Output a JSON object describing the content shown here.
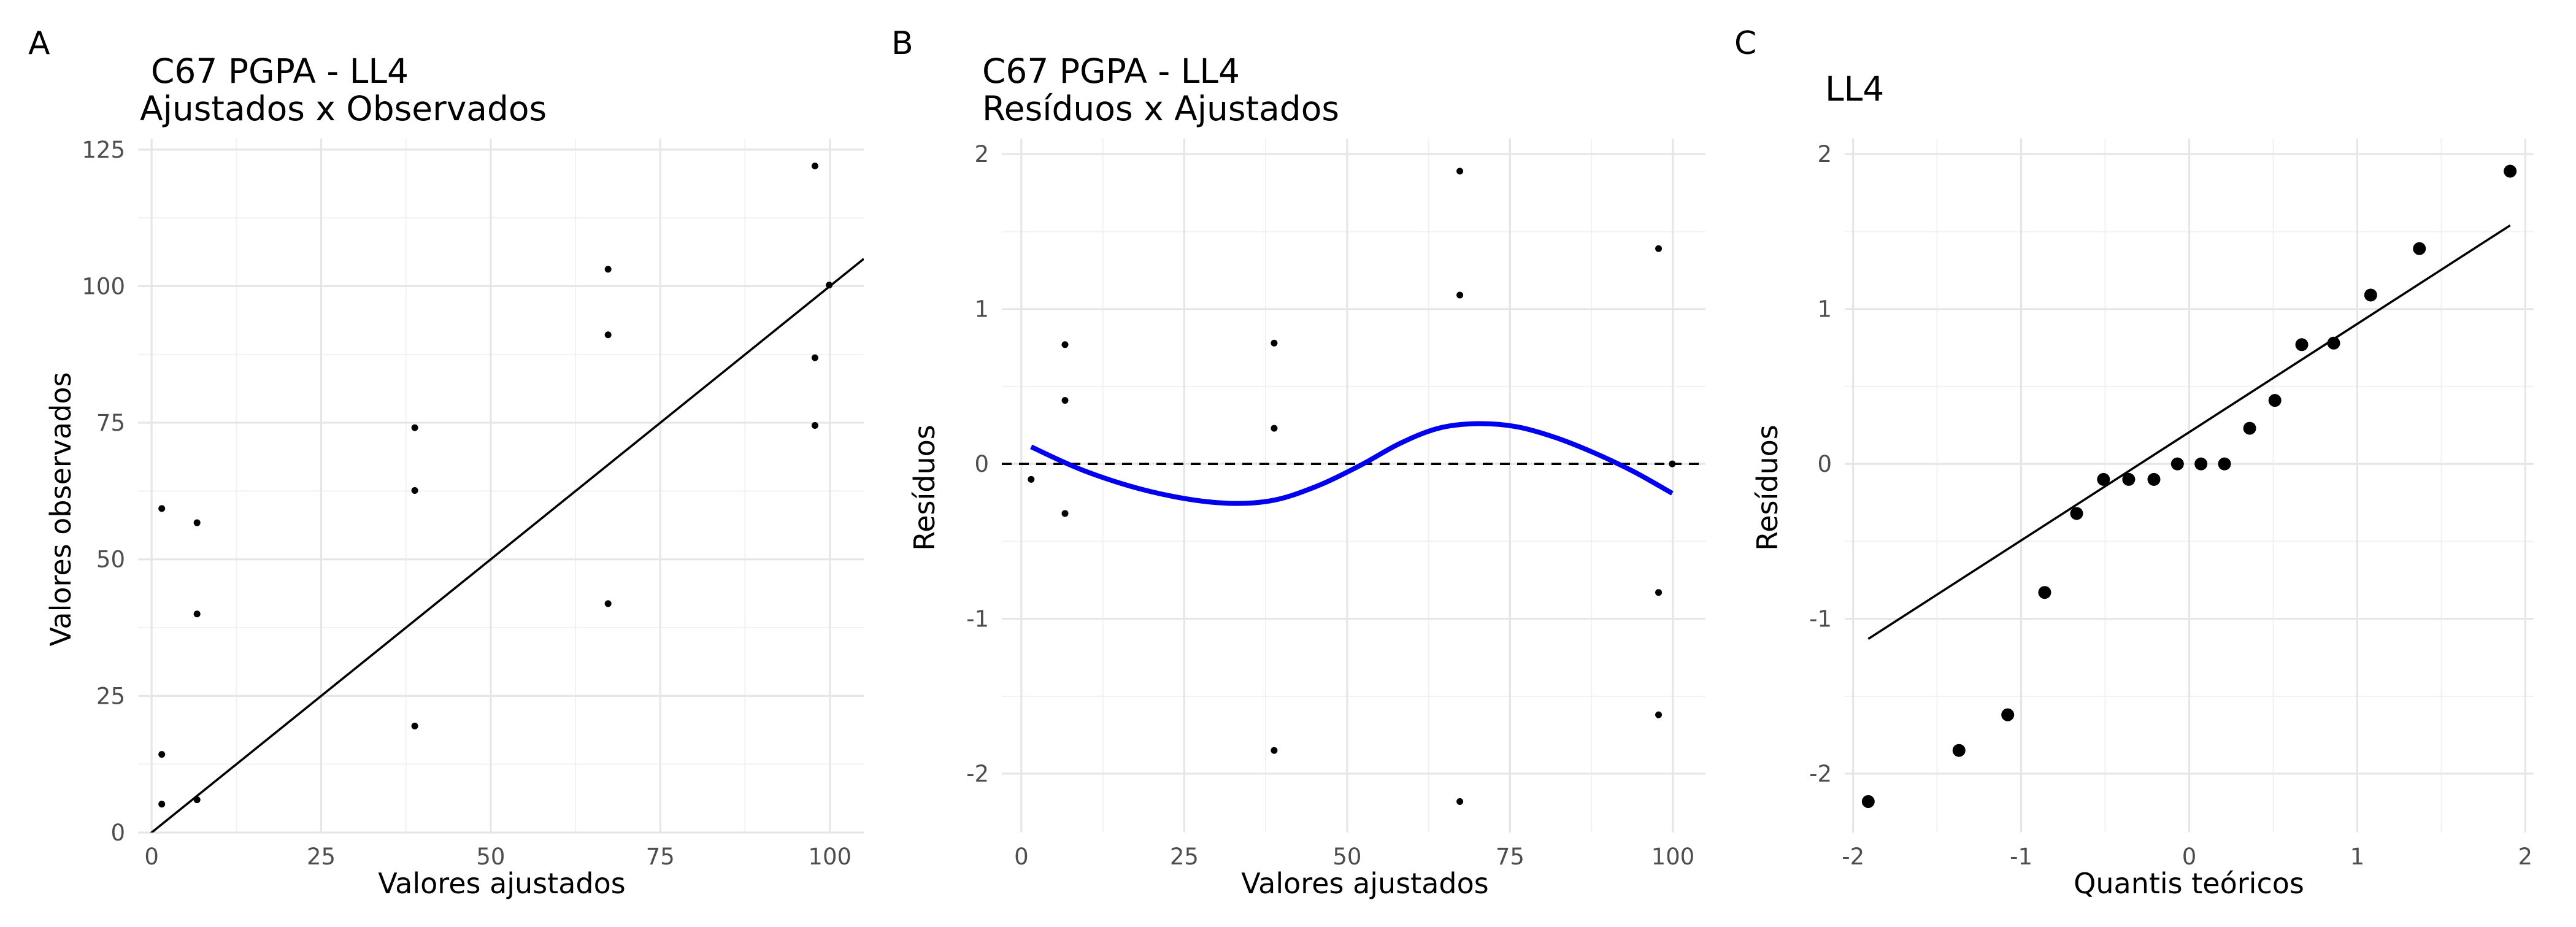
{
  "chart_data": [
    {
      "panel": "A",
      "type": "scatter",
      "title_line1": "C67 PGPA - LL4",
      "title_line2": "Ajustados x Observados",
      "xlabel": "Valores ajustados",
      "ylabel": "Valores observados",
      "xlim": [
        -2,
        105
      ],
      "ylim": [
        0,
        127
      ],
      "xticks": [
        0,
        25,
        50,
        75,
        100
      ],
      "yticks": [
        0,
        25,
        50,
        75,
        100,
        125
      ],
      "grid": true,
      "points": {
        "x": [
          1.5,
          1.5,
          1.5,
          6.7,
          6.7,
          6.7,
          38.8,
          38.8,
          38.8,
          67.3,
          67.3,
          67.3,
          97.8,
          97.8,
          97.8,
          99.9
        ],
        "y": [
          59.3,
          14.3,
          5.2,
          56.7,
          40.0,
          6.0,
          74.1,
          62.6,
          19.5,
          103.1,
          91.1,
          41.9,
          122.0,
          86.9,
          74.5,
          100.2
        ]
      },
      "reference_line": {
        "slope": 1,
        "intercept": 0
      }
    },
    {
      "panel": "B",
      "type": "scatter",
      "title_line1": "C67 PGPA - LL4",
      "title_line2": "Resíduos x Ajustados",
      "xlabel": "Valores ajustados",
      "ylabel": "Resíduos",
      "xlim": [
        -3,
        105
      ],
      "ylim": [
        -2.38,
        2.1
      ],
      "xticks": [
        0,
        25,
        50,
        75,
        100
      ],
      "yticks": [
        -2,
        -1,
        0,
        1,
        2
      ],
      "grid": true,
      "points": {
        "x": [
          1.5,
          6.7,
          6.7,
          6.7,
          38.8,
          38.8,
          38.8,
          67.3,
          67.3,
          67.3,
          97.8,
          97.8,
          97.8,
          99.9
        ],
        "y": [
          -0.1,
          0.77,
          0.41,
          -0.32,
          0.78,
          0.23,
          -1.85,
          1.89,
          1.09,
          -2.18,
          1.39,
          -0.83,
          -1.62,
          0.0
        ]
      },
      "smooth_line": {
        "color": "#0000ee",
        "x": [
          1.5,
          10,
          20,
          30,
          38,
          45,
          52,
          58,
          64,
          70,
          76,
          82,
          88,
          94,
          99.9
        ],
        "y": [
          0.11,
          -0.05,
          -0.18,
          -0.25,
          -0.24,
          -0.15,
          -0.01,
          0.13,
          0.23,
          0.26,
          0.24,
          0.17,
          0.07,
          -0.05,
          -0.19
        ]
      },
      "hline": {
        "y": 0,
        "style": "dashed"
      }
    },
    {
      "panel": "C",
      "type": "scatter",
      "title_line1": "LL4",
      "xlabel": "Quantis teóricos",
      "ylabel": "Resíduos",
      "xlim": [
        -2.05,
        2.05
      ],
      "ylim": [
        -2.38,
        2.1
      ],
      "xticks": [
        -2,
        -1,
        0,
        1,
        2
      ],
      "yticks": [
        -2,
        -1,
        0,
        1,
        2
      ],
      "grid": true,
      "points": {
        "x": [
          -1.91,
          -1.37,
          -1.08,
          -0.86,
          -0.67,
          -0.51,
          -0.36,
          -0.21,
          -0.07,
          0.07,
          0.21,
          0.36,
          0.51,
          0.67,
          0.86,
          1.08,
          1.37,
          1.91
        ],
        "y": [
          -2.18,
          -1.85,
          -1.62,
          -0.83,
          -0.32,
          -0.1,
          -0.1,
          -0.1,
          0.0,
          0.0,
          0.0,
          0.23,
          0.41,
          0.77,
          0.78,
          1.09,
          1.39,
          1.89
        ]
      },
      "qq_line": {
        "x": [
          -1.91,
          1.91
        ],
        "y": [
          -1.13,
          1.54
        ]
      }
    }
  ]
}
